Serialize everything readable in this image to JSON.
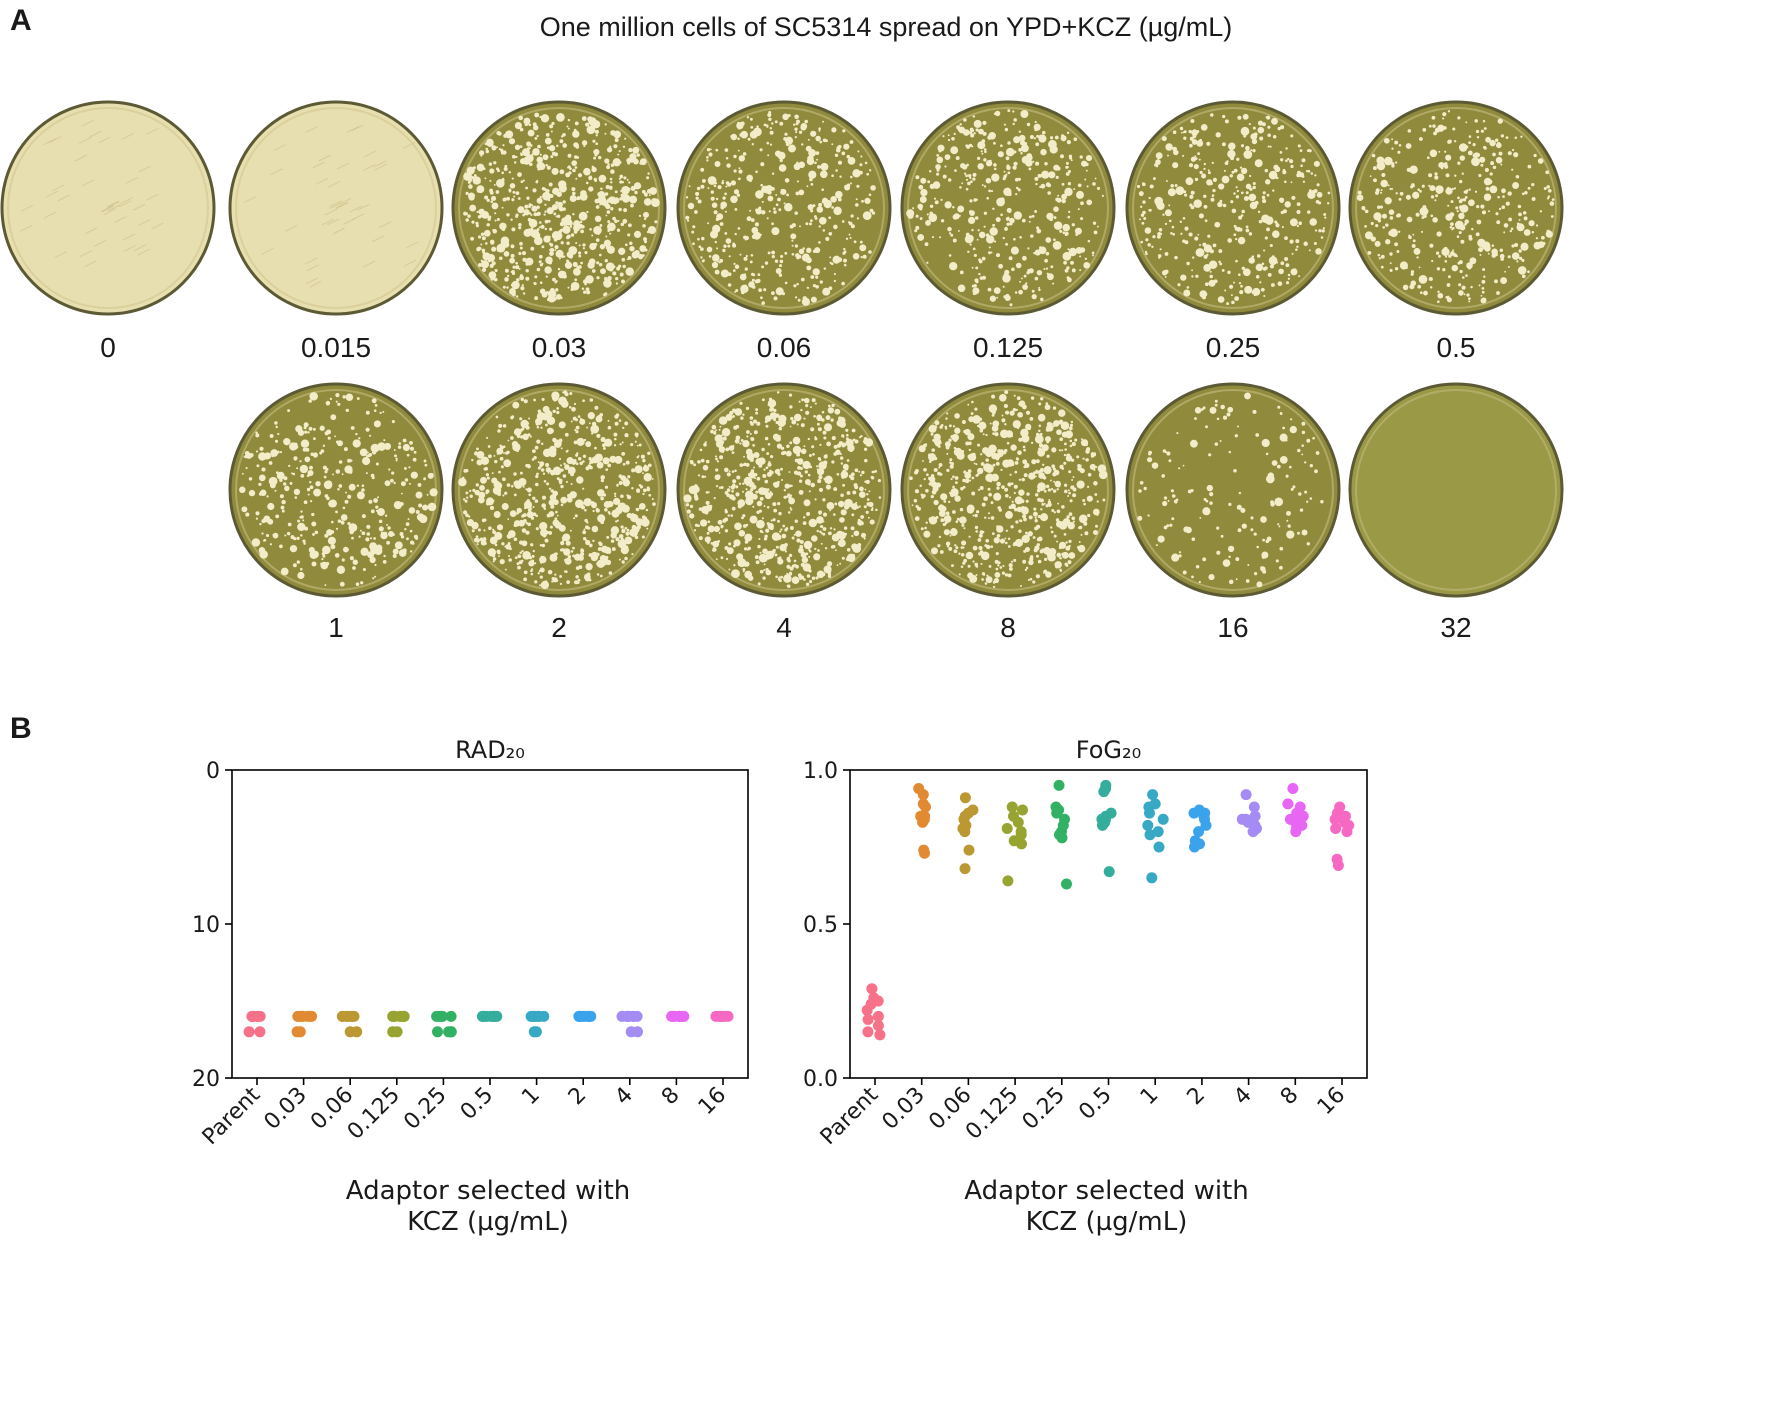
{
  "panel_a": {
    "letter": "A",
    "title": "One million cells of SC5314 spread on YPD+KCZ (µg/mL)",
    "unit": "µg/mL",
    "row1": [
      {
        "label": "0",
        "colonies": 0,
        "lawn": true
      },
      {
        "label": "0.015",
        "colonies": 0,
        "lawn": true
      },
      {
        "label": "0.03",
        "colonies": 700,
        "lawn": false
      },
      {
        "label": "0.06",
        "colonies": 420,
        "lawn": false
      },
      {
        "label": "0.125",
        "colonies": 420,
        "lawn": false
      },
      {
        "label": "0.25",
        "colonies": 400,
        "lawn": false
      },
      {
        "label": "0.5",
        "colonies": 400,
        "lawn": false
      }
    ],
    "row2": [
      {
        "label": "1",
        "colonies": 380,
        "lawn": false
      },
      {
        "label": "2",
        "colonies": 650,
        "lawn": false
      },
      {
        "label": "4",
        "colonies": 700,
        "lawn": false
      },
      {
        "label": "8",
        "colonies": 650,
        "lawn": false
      },
      {
        "label": "16",
        "colonies": 160,
        "lawn": false
      },
      {
        "label": "32",
        "colonies": 0,
        "lawn": false
      }
    ],
    "colors": {
      "lawn": "#e8dfb0",
      "agar": "#8f8a3c",
      "agar_clear": "#9a9a46",
      "colony": "#f3ecc8",
      "rim": "#5c5a34"
    }
  },
  "panel_b": {
    "letter": "B"
  },
  "chart_data": [
    {
      "type": "scatter",
      "title": "RAD₂₀",
      "xlabel": "Adaptor selected with\nKCZ (µg/mL)",
      "ylabel": "",
      "categories": [
        "Parent",
        "0.03",
        "0.06",
        "0.125",
        "0.25",
        "0.5",
        "1",
        "2",
        "4",
        "8",
        "16"
      ],
      "ylim": [
        20,
        0
      ],
      "yticks": [
        0,
        10,
        20
      ],
      "grid": false,
      "series": [
        {
          "name": "Parent",
          "color": "#f77189",
          "values": [
            16,
            16,
            16,
            16,
            16,
            16,
            16,
            16,
            17,
            17
          ]
        },
        {
          "name": "0.03",
          "color": "#e18a32",
          "values": [
            16,
            16,
            16,
            16,
            16,
            16,
            16,
            17,
            17,
            16
          ]
        },
        {
          "name": "0.06",
          "color": "#bb9832",
          "values": [
            16,
            16,
            16,
            16,
            16,
            16,
            16,
            16,
            17,
            17
          ]
        },
        {
          "name": "0.125",
          "color": "#97a431",
          "values": [
            16,
            16,
            16,
            16,
            16,
            16,
            16,
            16,
            17,
            17
          ]
        },
        {
          "name": "0.25",
          "color": "#32b165",
          "values": [
            16,
            16,
            16,
            16,
            16,
            16,
            17,
            17,
            17,
            17
          ]
        },
        {
          "name": "0.5",
          "color": "#35ad9c",
          "values": [
            16,
            16,
            16,
            16,
            16,
            16,
            16,
            16,
            16,
            16
          ]
        },
        {
          "name": "1",
          "color": "#38a9c5",
          "values": [
            16,
            16,
            16,
            16,
            16,
            16,
            16,
            16,
            17,
            17
          ]
        },
        {
          "name": "2",
          "color": "#3ba3ec",
          "values": [
            16,
            16,
            16,
            16,
            16,
            16,
            16,
            16,
            16,
            16
          ]
        },
        {
          "name": "4",
          "color": "#a48cf4",
          "values": [
            16,
            16,
            16,
            16,
            16,
            16,
            16,
            16,
            17,
            17
          ]
        },
        {
          "name": "8",
          "color": "#e866f4",
          "values": [
            16,
            16,
            16,
            16,
            16,
            16,
            16,
            16,
            16,
            16
          ]
        },
        {
          "name": "16",
          "color": "#f668c2",
          "values": [
            16,
            16,
            16,
            16,
            16,
            16,
            16,
            16,
            16,
            16
          ]
        }
      ]
    },
    {
      "type": "scatter",
      "title": "FoG₂₀",
      "xlabel": "Adaptor selected with\nKCZ (µg/mL)",
      "ylabel": "",
      "categories": [
        "Parent",
        "0.03",
        "0.06",
        "0.125",
        "0.25",
        "0.5",
        "1",
        "2",
        "4",
        "8",
        "16"
      ],
      "ylim": [
        0.0,
        1.0
      ],
      "yticks": [
        0.0,
        0.5,
        1.0
      ],
      "grid": false,
      "series": [
        {
          "name": "Parent",
          "color": "#f77189",
          "values": [
            0.29,
            0.26,
            0.25,
            0.24,
            0.22,
            0.2,
            0.19,
            0.17,
            0.15,
            0.14
          ]
        },
        {
          "name": "0.03",
          "color": "#e18a32",
          "values": [
            0.94,
            0.92,
            0.89,
            0.88,
            0.85,
            0.85,
            0.84,
            0.74,
            0.73,
            0.83
          ]
        },
        {
          "name": "0.06",
          "color": "#bb9832",
          "values": [
            0.91,
            0.87,
            0.86,
            0.84,
            0.82,
            0.81,
            0.8,
            0.74,
            0.68,
            0.85
          ]
        },
        {
          "name": "0.125",
          "color": "#97a431",
          "values": [
            0.88,
            0.87,
            0.85,
            0.83,
            0.81,
            0.8,
            0.79,
            0.77,
            0.76,
            0.64
          ]
        },
        {
          "name": "0.25",
          "color": "#32b165",
          "values": [
            0.95,
            0.88,
            0.87,
            0.86,
            0.84,
            0.82,
            0.8,
            0.79,
            0.78,
            0.63
          ]
        },
        {
          "name": "0.5",
          "color": "#35ad9c",
          "values": [
            0.95,
            0.94,
            0.93,
            0.86,
            0.85,
            0.84,
            0.84,
            0.83,
            0.82,
            0.67
          ]
        },
        {
          "name": "1",
          "color": "#38a9c5",
          "values": [
            0.92,
            0.89,
            0.88,
            0.86,
            0.84,
            0.82,
            0.8,
            0.79,
            0.75,
            0.65
          ]
        },
        {
          "name": "2",
          "color": "#3ba3ec",
          "values": [
            0.87,
            0.86,
            0.86,
            0.85,
            0.84,
            0.82,
            0.8,
            0.77,
            0.76,
            0.75
          ]
        },
        {
          "name": "4",
          "color": "#a48cf4",
          "values": [
            0.92,
            0.88,
            0.85,
            0.84,
            0.84,
            0.83,
            0.82,
            0.81,
            0.81,
            0.8
          ]
        },
        {
          "name": "8",
          "color": "#e866f4",
          "values": [
            0.94,
            0.89,
            0.88,
            0.86,
            0.85,
            0.84,
            0.83,
            0.82,
            0.81,
            0.8
          ]
        },
        {
          "name": "16",
          "color": "#f668c2",
          "values": [
            0.88,
            0.86,
            0.85,
            0.84,
            0.83,
            0.82,
            0.81,
            0.8,
            0.71,
            0.69
          ]
        }
      ]
    }
  ]
}
